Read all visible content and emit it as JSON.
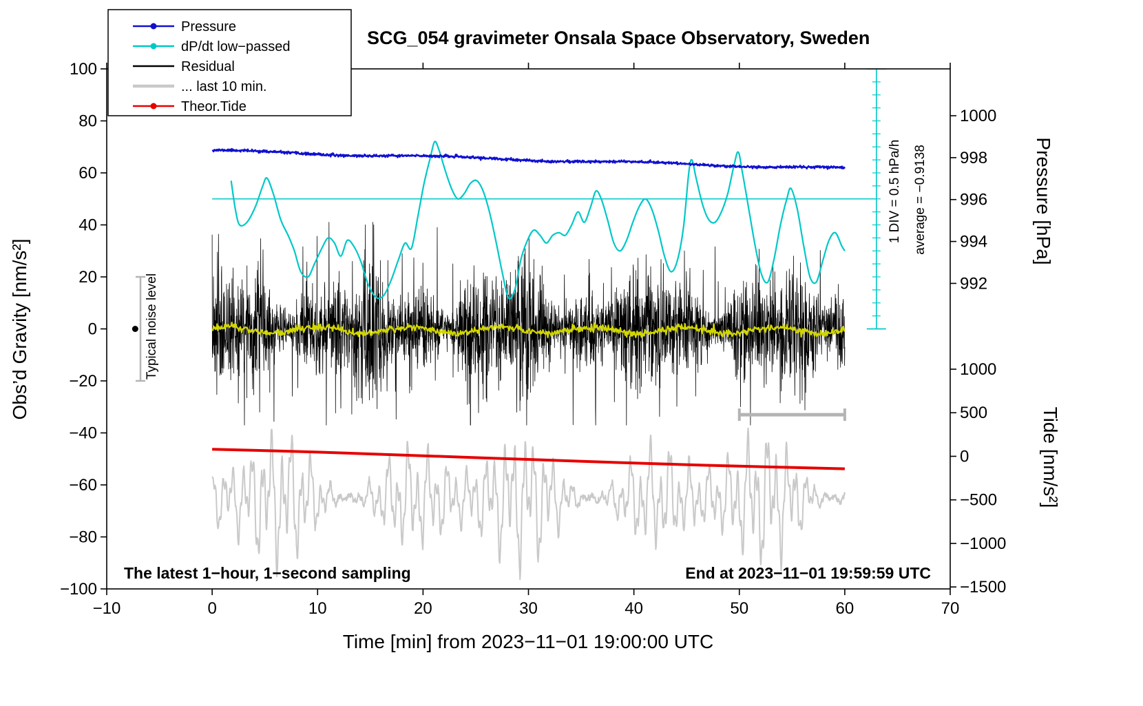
{
  "title": "SCG_054 gravimeter Onsala Space Observatory, Sweden",
  "legend": {
    "items": [
      {
        "label": "Pressure",
        "color": "#1010d0",
        "marker": "dot-line"
      },
      {
        "label": "dP/dt low−passed",
        "color": "#00c8c8",
        "marker": "dot-line"
      },
      {
        "label": "Residual",
        "color": "#000000",
        "marker": "line"
      },
      {
        "label": "... last 10 min.",
        "color": "#c9c9c9",
        "marker": "thick-line"
      },
      {
        "label": "Theor.Tide",
        "color": "#e60000",
        "marker": "dot-line"
      }
    ]
  },
  "axes": {
    "x": {
      "label": "Time [min] from 2023−11−01 19:00:00 UTC",
      "min": -10,
      "max": 70,
      "ticks": [
        -10,
        0,
        10,
        20,
        30,
        40,
        50,
        60,
        70
      ]
    },
    "y_left": {
      "label": "Obs’d Gravity [nm/s²]",
      "min": -100,
      "max": 100,
      "ticks": [
        -100,
        -80,
        -60,
        -40,
        -20,
        0,
        20,
        40,
        60,
        80,
        100
      ]
    },
    "y_pressure": {
      "label": "Pressure [hPa]",
      "ticks": [
        1000,
        998,
        996,
        994,
        992
      ],
      "map": {
        "v0": 992,
        "g0": 17.5,
        "slope": 8.06
      }
    },
    "y_tide": {
      "label": "Tide [nm/s²]",
      "ticks": [
        1000,
        500,
        0,
        -500,
        -1000,
        -1500
      ],
      "map": {
        "v0": 0,
        "g0": -49,
        "slope": 0.0335
      }
    }
  },
  "annotations": {
    "div_scale": "1 DIV = 0.5 hPa/h",
    "average": "average = −0.9138",
    "noise_level": "Typical noise level",
    "sampling": "The latest 1−hour, 1−second sampling",
    "end_time": "End at 2023−11−01 19:59:59 UTC"
  },
  "chart_data": {
    "type": "line",
    "title": "SCG_054 gravimeter Onsala Space Observatory, Sweden",
    "xlabel": "Time [min] from 2023−11−01 19:00:00 UTC",
    "x_range": [
      -10,
      70
    ],
    "y_left_label": "Obs’d Gravity [nm/s²]",
    "y_left_range": [
      -100,
      100
    ],
    "pressure_axis_range_hPa": [
      992,
      1000
    ],
    "tide_axis_range_nms2": [
      -1500,
      1000
    ],
    "grid": false,
    "legend_position": "top-left",
    "series": [
      {
        "name": "... last 10 min.",
        "type": "waves",
        "axis": "gravity",
        "color": "#c9c9c9",
        "width": 2,
        "x": [
          0,
          60
        ],
        "center": -65,
        "components": [
          {
            "amp": 0.55,
            "period": 0.92,
            "phase": 0.4
          },
          {
            "amp": 0.35,
            "period": 1.9,
            "phase": 2.6
          },
          {
            "amp": 0.22,
            "period": 0.33,
            "phase": 1.2
          }
        ],
        "envelope": {
          "base": 16,
          "mods": [
            {
              "amp": 9,
              "period": 11.5,
              "phase": 4.1
            },
            {
              "amp": 6.5,
              "period": 23,
              "phase": 0.7
            }
          ]
        },
        "clamp": [
          -99,
          -31
        ],
        "n": 2200,
        "seed": 5
      },
      {
        "name": "Theor.Tide",
        "type": "smooth",
        "axis": "tide",
        "color": "#e60000",
        "width": 4,
        "points": [
          [
            0,
            81
          ],
          [
            10,
            48
          ],
          [
            20,
            6
          ],
          [
            30,
            -36
          ],
          [
            40,
            -78
          ],
          [
            50,
            -113
          ],
          [
            60,
            -143
          ]
        ]
      },
      {
        "name": "Residual",
        "type": "noise",
        "axis": "gravity",
        "color": "#000000",
        "width": 0.8,
        "x": [
          0,
          60
        ],
        "mean": 0,
        "base_sd": 8.5,
        "env": [
          {
            "amp": 3.2,
            "period": 13.3,
            "phase": 1.0
          },
          {
            "amp": 2.4,
            "period": 5.1,
            "phase": 2.2
          }
        ],
        "spike_prob": 0.02,
        "spike_min": 18,
        "spike_max": 36,
        "clamp": [
          -37,
          41
        ],
        "n": 3000,
        "seed": 7
      },
      {
        "name": "Residual low−passed",
        "type": "noisy_trend",
        "axis": "gravity",
        "color": "#d2d600",
        "width": 2.2,
        "x": [
          0,
          60
        ],
        "start": -0.4,
        "end": -0.6,
        "noise_sd": 0.7,
        "wave_amp": 1.2,
        "wave_period": 8.7,
        "n": 900,
        "seed": 21
      },
      {
        "name": "dP/dt low−passed",
        "type": "smooth",
        "axis": "gravity",
        "color": "#00c8c8",
        "width": 2.2,
        "points": [
          [
            1.8,
            57
          ],
          [
            2.2,
            46
          ],
          [
            2.6,
            40
          ],
          [
            3.3,
            41
          ],
          [
            4.1,
            47
          ],
          [
            4.8,
            55
          ],
          [
            5.2,
            58
          ],
          [
            5.8,
            52
          ],
          [
            6.5,
            42
          ],
          [
            7.2,
            36
          ],
          [
            7.8,
            30
          ],
          [
            8.4,
            22
          ],
          [
            9.1,
            20
          ],
          [
            9.7,
            25
          ],
          [
            10.4,
            31
          ],
          [
            11,
            35
          ],
          [
            11.6,
            33
          ],
          [
            12.2,
            28
          ],
          [
            12.8,
            34
          ],
          [
            13.4,
            32
          ],
          [
            14.1,
            26
          ],
          [
            14.8,
            17
          ],
          [
            15.6,
            12
          ],
          [
            16.3,
            13
          ],
          [
            17,
            19
          ],
          [
            17.7,
            27
          ],
          [
            18.3,
            33
          ],
          [
            18.9,
            31
          ],
          [
            19.5,
            43
          ],
          [
            20.1,
            56
          ],
          [
            20.7,
            66
          ],
          [
            21.1,
            72
          ],
          [
            21.5,
            69
          ],
          [
            22.1,
            61
          ],
          [
            22.7,
            54
          ],
          [
            23.3,
            50
          ],
          [
            23.9,
            52
          ],
          [
            24.5,
            56
          ],
          [
            25.1,
            57
          ],
          [
            25.7,
            53
          ],
          [
            26.3,
            45
          ],
          [
            26.9,
            34
          ],
          [
            27.5,
            22
          ],
          [
            28.1,
            12
          ],
          [
            28.7,
            15
          ],
          [
            29.3,
            27
          ],
          [
            29.9,
            34
          ],
          [
            30.5,
            38
          ],
          [
            31.1,
            36
          ],
          [
            31.7,
            33
          ],
          [
            32.3,
            36
          ],
          [
            32.9,
            37
          ],
          [
            33.5,
            36
          ],
          [
            34.1,
            40
          ],
          [
            34.7,
            45
          ],
          [
            35.3,
            41
          ],
          [
            35.9,
            47
          ],
          [
            36.4,
            53
          ],
          [
            36.9,
            50
          ],
          [
            37.5,
            42
          ],
          [
            38.1,
            33
          ],
          [
            38.7,
            30
          ],
          [
            39.3,
            34
          ],
          [
            39.9,
            41
          ],
          [
            40.5,
            47
          ],
          [
            41.1,
            50
          ],
          [
            41.7,
            46
          ],
          [
            42.3,
            38
          ],
          [
            42.9,
            28
          ],
          [
            43.5,
            22
          ],
          [
            44.1,
            26
          ],
          [
            44.7,
            39
          ],
          [
            45.2,
            60
          ],
          [
            45.5,
            65
          ],
          [
            45.9,
            58
          ],
          [
            46.5,
            48
          ],
          [
            47.1,
            42
          ],
          [
            47.7,
            41
          ],
          [
            48.3,
            45
          ],
          [
            48.9,
            52
          ],
          [
            49.5,
            63
          ],
          [
            49.9,
            68
          ],
          [
            50.3,
            60
          ],
          [
            50.9,
            46
          ],
          [
            51.5,
            32
          ],
          [
            52.1,
            21
          ],
          [
            52.7,
            18
          ],
          [
            53.3,
            27
          ],
          [
            53.9,
            40
          ],
          [
            54.5,
            50
          ],
          [
            54.9,
            54
          ],
          [
            55.5,
            46
          ],
          [
            56.1,
            32
          ],
          [
            56.7,
            20
          ],
          [
            57.3,
            18
          ],
          [
            57.9,
            26
          ],
          [
            58.5,
            34
          ],
          [
            59.1,
            37
          ],
          [
            59.7,
            32
          ],
          [
            60,
            30
          ]
        ]
      },
      {
        "name": "Pressure",
        "type": "noisy_trend",
        "axis": "pressure",
        "color": "#1010d0",
        "width": 2.4,
        "x": [
          0,
          60
        ],
        "start": 998.33,
        "end": 997.48,
        "noise_sd": 0.03,
        "wave_amp": 0.05,
        "wave_period": 19,
        "n": 1400,
        "seed": 11
      }
    ],
    "markers": {
      "dpdt_zero_line": {
        "g": 50,
        "x": [
          0,
          63
        ],
        "color": "#00c8c8"
      },
      "dpdt_scale": {
        "t": 63,
        "g": [
          0,
          100
        ],
        "tick_step": 5,
        "div_value": "1 DIV = 0.5 hPa/h",
        "color": "#00c8c8"
      },
      "last10_span_bar": {
        "g": -33,
        "x": [
          50,
          60
        ],
        "color": "#b4b4b4"
      },
      "noise_bar": {
        "t": -6.8,
        "g": [
          -20,
          20
        ],
        "dot": {
          "t": -7.3,
          "g": 0
        },
        "color": "#b4b4b4",
        "dot_color": "#000000"
      }
    }
  }
}
